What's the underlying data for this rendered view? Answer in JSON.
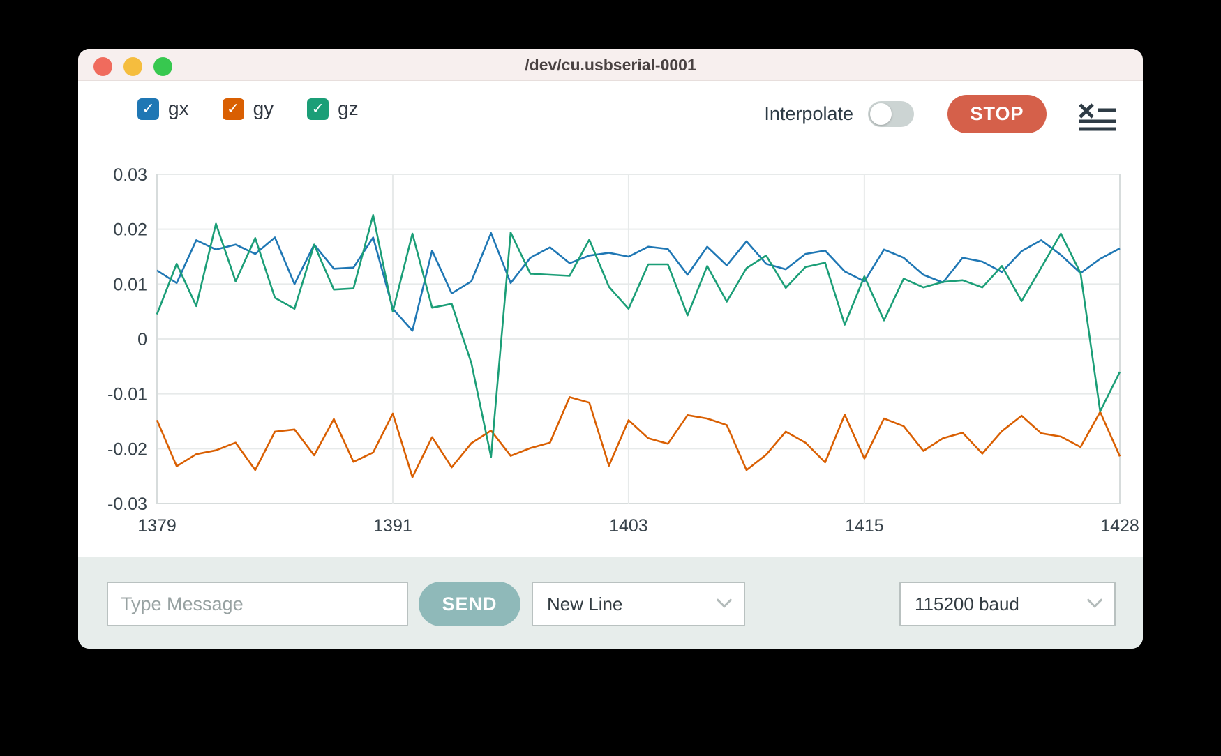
{
  "window": {
    "title": "/dev/cu.usbserial-0001"
  },
  "legend": {
    "check_glyph": "✓",
    "items": [
      {
        "label": "gx",
        "checked": true
      },
      {
        "label": "gy",
        "checked": true
      },
      {
        "label": "gz",
        "checked": true
      }
    ]
  },
  "controls": {
    "interpolate_label": "Interpolate",
    "interpolate_on": false,
    "stop_label": "STOP"
  },
  "composer": {
    "message_placeholder": "Type Message",
    "message_value": "",
    "send_label": "SEND",
    "line_ending_selected": "New Line",
    "baud_rate_selected": "115200 baud"
  },
  "colors": {
    "gx": "#1f77b4",
    "gy": "#d95f02",
    "gz": "#1b9e77",
    "stop": "#d5604a",
    "send": "#8fb9b9",
    "titlebar": "#f7efee",
    "bottombar": "#e7edeb",
    "toggletrack": "#ccd4d3",
    "icondark": "#2e3b45",
    "tred": "#f06b5d",
    "tyellow": "#f5bd3e",
    "tgreen": "#37c84f",
    "grid": "#e7eaea",
    "gridedge": "#d7dcdc",
    "ticktext": "#37424a"
  },
  "chart_data": {
    "type": "line",
    "title": "",
    "xlabel": "",
    "ylabel": "",
    "grid": true,
    "legend_position": "top-left-external",
    "xlim": [
      1379,
      1428
    ],
    "ylim": [
      -0.03,
      0.03
    ],
    "xtick_values": [
      1379,
      1391,
      1403,
      1415,
      1428
    ],
    "xtick_labels": [
      "1379",
      "1391",
      "1403",
      "1415",
      "1428"
    ],
    "ytick_values": [
      0.03,
      0.02,
      0.01,
      0,
      -0.01,
      -0.02,
      -0.03
    ],
    "ytick_labels": [
      "0.03",
      "0.02",
      "0.01",
      "0",
      "-0.01",
      "-0.02",
      "-0.03"
    ],
    "x": [
      1379,
      1380,
      1381,
      1382,
      1383,
      1384,
      1385,
      1386,
      1387,
      1388,
      1389,
      1390,
      1391,
      1392,
      1393,
      1394,
      1395,
      1396,
      1397,
      1398,
      1399,
      1400,
      1401,
      1402,
      1403,
      1404,
      1405,
      1406,
      1407,
      1408,
      1409,
      1410,
      1411,
      1412,
      1413,
      1414,
      1415,
      1416,
      1417,
      1418,
      1419,
      1420,
      1421,
      1422,
      1423,
      1424,
      1425,
      1426,
      1427,
      1428
    ],
    "series": [
      {
        "name": "gx",
        "color_key": "gx",
        "values": [
          0.0125,
          0.0102,
          0.018,
          0.0163,
          0.0172,
          0.0155,
          0.0185,
          0.01,
          0.0172,
          0.0128,
          0.013,
          0.0185,
          0.0055,
          0.0015,
          0.0161,
          0.0083,
          0.0105,
          0.0193,
          0.0102,
          0.0148,
          0.0167,
          0.0138,
          0.0152,
          0.0157,
          0.015,
          0.0168,
          0.0164,
          0.0117,
          0.0168,
          0.0134,
          0.0178,
          0.0137,
          0.0127,
          0.0155,
          0.0161,
          0.0123,
          0.0105,
          0.0163,
          0.0148,
          0.0117,
          0.0103,
          0.0148,
          0.0141,
          0.0122,
          0.016,
          0.018,
          0.0153,
          0.012,
          0.0146,
          0.0165
        ]
      },
      {
        "name": "gy",
        "color_key": "gy",
        "values": [
          -0.0148,
          -0.0232,
          -0.021,
          -0.0203,
          -0.0189,
          -0.0239,
          -0.0169,
          -0.0165,
          -0.0212,
          -0.0146,
          -0.0224,
          -0.0207,
          -0.0136,
          -0.0252,
          -0.0179,
          -0.0234,
          -0.019,
          -0.0167,
          -0.0213,
          -0.0199,
          -0.0189,
          -0.0106,
          -0.0116,
          -0.0231,
          -0.0148,
          -0.0181,
          -0.0191,
          -0.0139,
          -0.0145,
          -0.0157,
          -0.0239,
          -0.0211,
          -0.0169,
          -0.0189,
          -0.0225,
          -0.0138,
          -0.0218,
          -0.0145,
          -0.0159,
          -0.0204,
          -0.0181,
          -0.0171,
          -0.0209,
          -0.0168,
          -0.014,
          -0.0172,
          -0.0178,
          -0.0197,
          -0.0133,
          -0.0214
        ]
      },
      {
        "name": "gz",
        "color_key": "gz",
        "values": [
          0.0045,
          0.0137,
          0.006,
          0.021,
          0.0105,
          0.0184,
          0.0075,
          0.0055,
          0.0172,
          0.009,
          0.0092,
          0.0226,
          0.005,
          0.0192,
          0.0057,
          0.0064,
          -0.0044,
          -0.0215,
          0.0194,
          0.0119,
          0.0117,
          0.0115,
          0.0181,
          0.0095,
          0.0055,
          0.0136,
          0.0136,
          0.0043,
          0.0133,
          0.0068,
          0.0129,
          0.0152,
          0.0093,
          0.0131,
          0.0139,
          0.0026,
          0.0114,
          0.0034,
          0.011,
          0.0094,
          0.0104,
          0.0107,
          0.0094,
          0.0133,
          0.0069,
          0.013,
          0.0192,
          0.012,
          -0.0132,
          -0.006
        ]
      }
    ]
  }
}
